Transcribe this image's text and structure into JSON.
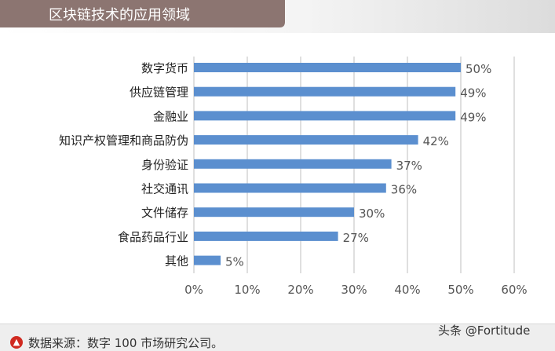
{
  "chart_data": {
    "type": "bar",
    "orientation": "horizontal",
    "title": "区块链技术的应用领域",
    "categories": [
      "数字货币",
      "供应链管理",
      "金融业",
      "知识产权管理和商品防伪",
      "身份验证",
      "社交通讯",
      "文件储存",
      "食品药品行业",
      "其他"
    ],
    "values": [
      50,
      49,
      49,
      42,
      37,
      36,
      30,
      27,
      5
    ],
    "value_labels": [
      "50%",
      "49%",
      "49%",
      "42%",
      "37%",
      "36%",
      "30%",
      "27%",
      "5%"
    ],
    "xlim": [
      0,
      60
    ],
    "x_ticks": [
      "0%",
      "10%",
      "20%",
      "30%",
      "40%",
      "50%",
      "60%"
    ],
    "grid": "vertical",
    "bar_color": "#5b8fcf",
    "xlabel": "",
    "ylabel": ""
  },
  "title_bar_color": "#8c7571",
  "footer": {
    "source_icon": "up-arrow-circle-icon",
    "source_text": "数据来源：数字 100 市场研究公司。"
  },
  "watermark": "头条 @Fortitude"
}
